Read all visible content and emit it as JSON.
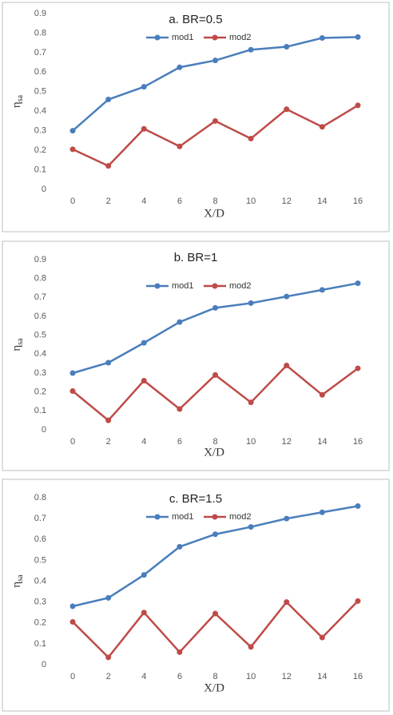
{
  "chart_data": [
    {
      "type": "line",
      "title": "a. BR=0.5",
      "x_label": "X/D",
      "y_label": "η",
      "y_label_subscript": "sa",
      "categories": [
        "0",
        "2",
        "4",
        "6",
        "8",
        "10",
        "12",
        "14",
        "16"
      ],
      "series": [
        {
          "name": "mod1",
          "color": "#4a7ebb",
          "values": [
            0.3,
            0.46,
            0.525,
            0.625,
            0.66,
            0.715,
            0.73,
            0.775,
            0.78
          ]
        },
        {
          "name": "mod2",
          "color": "#be4b48",
          "values": [
            0.205,
            0.12,
            0.31,
            0.22,
            0.35,
            0.26,
            0.41,
            0.32,
            0.43
          ]
        }
      ],
      "ylim": [
        0,
        0.9
      ],
      "yticks": [
        0,
        0.1,
        0.2,
        0.3,
        0.4,
        0.5,
        0.6,
        0.7,
        0.8,
        0.9
      ]
    },
    {
      "type": "line",
      "title": "b. BR=1",
      "x_label": "X/D",
      "y_label": "η",
      "y_label_subscript": "sa",
      "categories": [
        "0",
        "2",
        "4",
        "6",
        "8",
        "10",
        "12",
        "14",
        "16"
      ],
      "series": [
        {
          "name": "mod1",
          "color": "#4a7ebb",
          "values": [
            0.3,
            0.355,
            0.46,
            0.57,
            0.645,
            0.67,
            0.705,
            0.74,
            0.775
          ]
        },
        {
          "name": "mod2",
          "color": "#be4b48",
          "values": [
            0.205,
            0.05,
            0.26,
            0.11,
            0.29,
            0.145,
            0.34,
            0.185,
            0.325
          ]
        }
      ],
      "ylim": [
        0,
        0.9
      ],
      "yticks": [
        0,
        0.1,
        0.2,
        0.3,
        0.4,
        0.5,
        0.6,
        0.7,
        0.8,
        0.9
      ]
    },
    {
      "type": "line",
      "title": "c. BR=1.5",
      "x_label": "X/D",
      "y_label": "η",
      "y_label_subscript": "sa",
      "categories": [
        "0",
        "2",
        "4",
        "6",
        "8",
        "10",
        "12",
        "14",
        "16"
      ],
      "series": [
        {
          "name": "mod1",
          "color": "#4a7ebb",
          "values": [
            0.28,
            0.32,
            0.43,
            0.565,
            0.625,
            0.66,
            0.7,
            0.73,
            0.76
          ]
        },
        {
          "name": "mod2",
          "color": "#be4b48",
          "values": [
            0.205,
            0.035,
            0.25,
            0.06,
            0.245,
            0.085,
            0.3,
            0.13,
            0.305
          ]
        }
      ],
      "ylim": [
        0,
        0.8
      ],
      "yticks": [
        0,
        0.1,
        0.2,
        0.3,
        0.4,
        0.5,
        0.6,
        0.7,
        0.8
      ]
    }
  ]
}
